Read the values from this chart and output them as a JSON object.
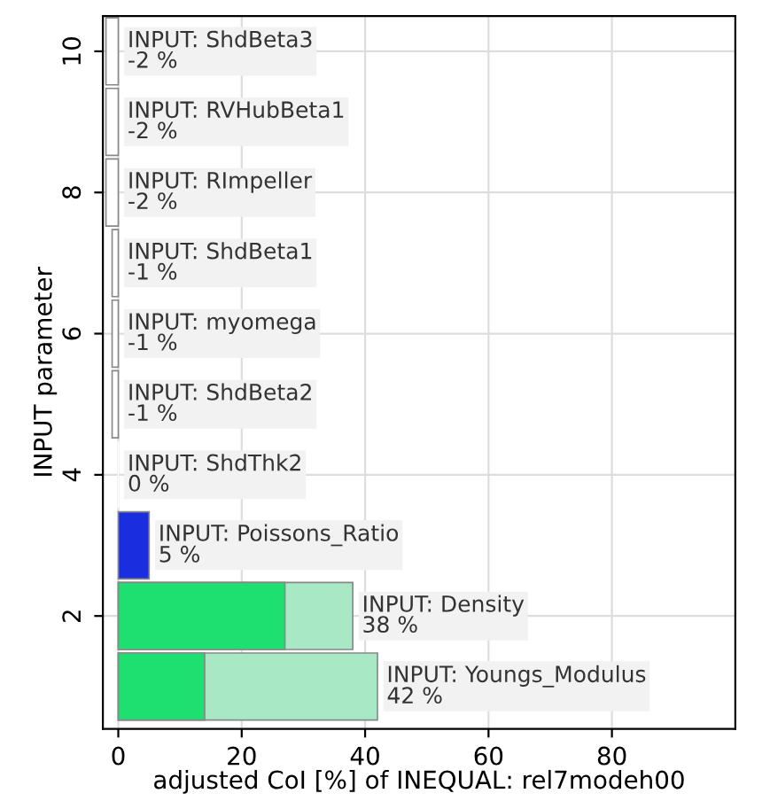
{
  "chart_data": {
    "type": "bar",
    "orientation": "horizontal",
    "xlabel": "adjusted CoI [%] of INEQUAL: rel7modeh00",
    "ylabel": "INPUT parameter",
    "x": [
      1,
      2,
      3,
      4,
      5,
      6,
      7,
      8,
      9,
      10
    ],
    "series": [
      {
        "values": [
          42,
          38,
          5,
          0,
          -1,
          -1,
          -1,
          -2,
          -2,
          -2
        ],
        "colors": [
          "#a8e8c4",
          "#a8e8c4",
          "#1a2ee0",
          "#ffffff",
          "#ffffff",
          "#ffffff",
          "#ffffff",
          "#ffffff",
          "#ffffff",
          "#ffffff"
        ],
        "value_labels": [
          "INPUT: Youngs_Modulus\n42 %",
          "INPUT: Density\n38 %",
          "INPUT: Poissons_Ratio\n5 %",
          "INPUT: ShdThk2\n0 %",
          "INPUT: ShdBeta2\n-1 %",
          "INPUT: myomega\n-1 %",
          "INPUT: ShdBeta1\n-1 %",
          "INPUT: RImpeller\n-2 %",
          "INPUT: RVHubBeta1\n-2 %",
          "INPUT: ShdBeta3\n-2 %"
        ]
      },
      {
        "values": [
          14,
          27,
          null,
          null,
          null,
          null,
          null,
          null,
          null,
          null
        ],
        "color": "#1ee070"
      }
    ],
    "xlim": [
      -2.5,
      100
    ],
    "xticks": [
      0,
      20,
      40,
      60,
      80
    ],
    "ylim": [
      0.4,
      10.5
    ],
    "yticks": [
      2,
      4,
      6,
      8,
      10
    ],
    "grid": true
  }
}
